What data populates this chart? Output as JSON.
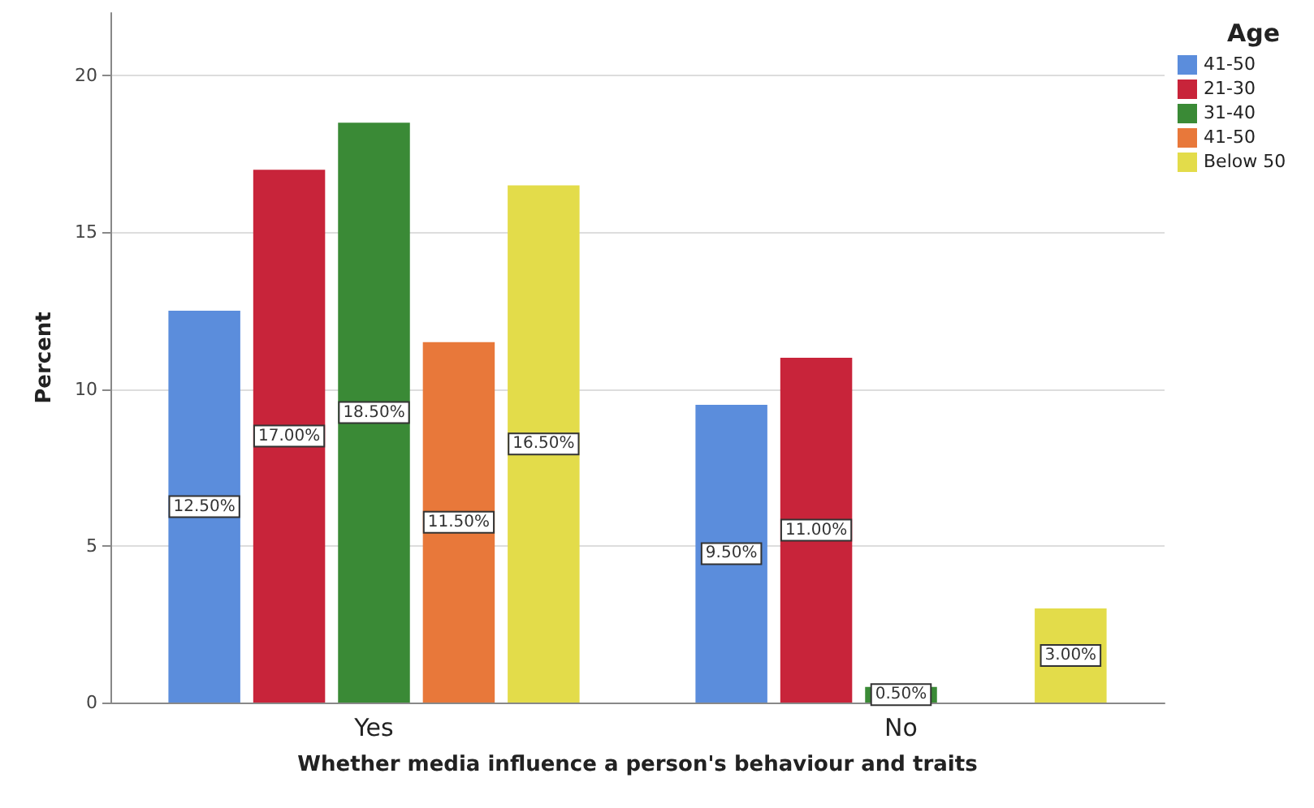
{
  "chart_data": {
    "type": "bar",
    "xlabel": "Whether media influence a person's behaviour and traits",
    "ylabel": "Percent",
    "legend_title": "Age",
    "categories": [
      "Yes",
      "No"
    ],
    "series": [
      {
        "name": "41-50",
        "color": "#5b8ddc",
        "values": [
          12.5,
          9.5
        ],
        "value_labels": [
          "12.50%",
          "9.50%"
        ]
      },
      {
        "name": "21-30",
        "color": "#c8243a",
        "values": [
          17,
          11
        ],
        "value_labels": [
          "17.00%",
          "11.00%"
        ]
      },
      {
        "name": "31-40",
        "color": "#3a8a36",
        "values": [
          18.5,
          0.5
        ],
        "value_labels": [
          "18.50%",
          "0.50%"
        ]
      },
      {
        "name": "41-50",
        "color": "#e8783a",
        "values": [
          11.5,
          null
        ],
        "value_labels": [
          "11.50%",
          null
        ]
      },
      {
        "name": "Below 50",
        "color": "#e3dc4a",
        "values": [
          16.5,
          3
        ],
        "value_labels": [
          "16.50%",
          "3.00%"
        ]
      }
    ],
    "ylim": [
      0,
      22
    ],
    "yticks": [
      0,
      5,
      10,
      15,
      20
    ],
    "grid": "y",
    "legend": "top right"
  }
}
